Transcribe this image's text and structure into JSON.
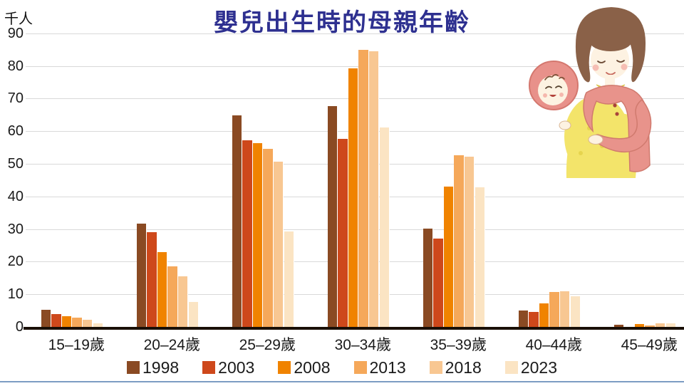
{
  "title": "嬰兒出生時的母親年齡",
  "title_color": "#2e3090",
  "y_axis_unit": "千人",
  "chart_data": {
    "type": "bar",
    "title": "嬰兒出生時的母親年齡",
    "ylabel": "千人",
    "ylim": [
      0,
      90
    ],
    "y_ticks": [
      0,
      10,
      20,
      30,
      40,
      50,
      60,
      70,
      80,
      90
    ],
    "grid": true,
    "legend_position": "bottom",
    "categories": [
      "15–19歲",
      "20–24歲",
      "25–29歲",
      "30–34歲",
      "35–39歲",
      "40–44歲",
      "45–49歲"
    ],
    "series": [
      {
        "name": "1998",
        "color": "#8a4a23",
        "values": [
          5.3,
          31.6,
          64.8,
          67.7,
          30.2,
          5.1,
          0.6
        ]
      },
      {
        "name": "2003",
        "color": "#ce481b",
        "values": [
          3.9,
          29.0,
          57.2,
          57.7,
          27.1,
          4.6,
          0.1
        ]
      },
      {
        "name": "2008",
        "color": "#f08300",
        "values": [
          3.2,
          23.0,
          56.3,
          79.3,
          43.1,
          7.3,
          0.8
        ]
      },
      {
        "name": "2013",
        "color": "#f5a85a",
        "values": [
          2.9,
          18.5,
          54.7,
          85.0,
          52.6,
          10.8,
          0.5
        ]
      },
      {
        "name": "2018",
        "color": "#f8c792",
        "values": [
          2.2,
          15.6,
          50.6,
          84.6,
          52.1,
          11.0,
          1.0
        ]
      },
      {
        "name": "2023",
        "color": "#fbe4c3",
        "values": [
          1.1,
          7.7,
          29.2,
          61.2,
          42.8,
          9.3,
          1.0
        ]
      }
    ]
  },
  "decoration": {
    "illustration_name": "pregnant-woman-with-baby-thought-bubble",
    "bottom_rule_color": "#7c9cc3",
    "gridline_color": "#d9d9d9",
    "baseline_color": "#190f05"
  }
}
